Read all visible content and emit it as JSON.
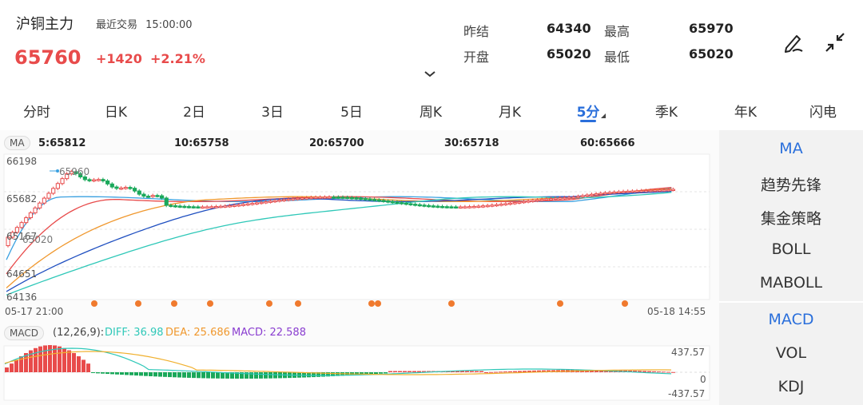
{
  "header": {
    "title": "沪铜主力",
    "status_label": "最近交易",
    "time": "15:00:00",
    "price": "65760",
    "change": "+1420",
    "change_pct": "+2.21%",
    "stats": [
      {
        "label": "昨结",
        "value": "64340"
      },
      {
        "label": "最高",
        "value": "65970"
      },
      {
        "label": "开盘",
        "value": "65020"
      },
      {
        "label": "最低",
        "value": "65020"
      }
    ],
    "icons": [
      "pen-icon",
      "collapse-icon",
      "chevron-down-icon"
    ]
  },
  "tabs": [
    "分时",
    "日K",
    "2日",
    "3日",
    "5日",
    "周K",
    "月K",
    "5分",
    "季K",
    "年K",
    "闪电"
  ],
  "active_tab": "5分",
  "main_chart": {
    "indicator": "MA",
    "ma_values": [
      {
        "label": "5:65812",
        "color": "#3aa0e0"
      },
      {
        "label": "10:65758",
        "color": "#e84b4b"
      },
      {
        "label": "20:65700",
        "color": "#f0982e"
      },
      {
        "label": "30:65718",
        "color": "#1f4fc0"
      },
      {
        "label": "60:65666",
        "color": "#2fc8b8"
      }
    ],
    "y_labels": [
      "66198",
      "65682",
      "65167",
      "64651",
      "64136"
    ],
    "high_label": "65960",
    "low_label": "65020",
    "x_start": "05-17 21:00",
    "x_end": "05-18 14:55"
  },
  "macd": {
    "indicator": "MACD",
    "params": "(12,26,9):",
    "diff": "DIFF: 36.98",
    "dea": "DEA: 25.686",
    "macd_val": "MACD: 22.588",
    "top": "437.57",
    "zero": "0",
    "bottom": "-437.57"
  },
  "colors": {
    "up": "#e84b4b",
    "down": "#1aa85a",
    "accent": "#2a6fdb"
  },
  "right_panel": {
    "main_items": [
      "MA",
      "趋势先锋",
      "集金策略",
      "BOLL",
      "MABOLL"
    ],
    "sub_items": [
      "MACD",
      "VOL",
      "KDJ"
    ],
    "active_main": "MA",
    "active_sub": "MACD"
  }
}
